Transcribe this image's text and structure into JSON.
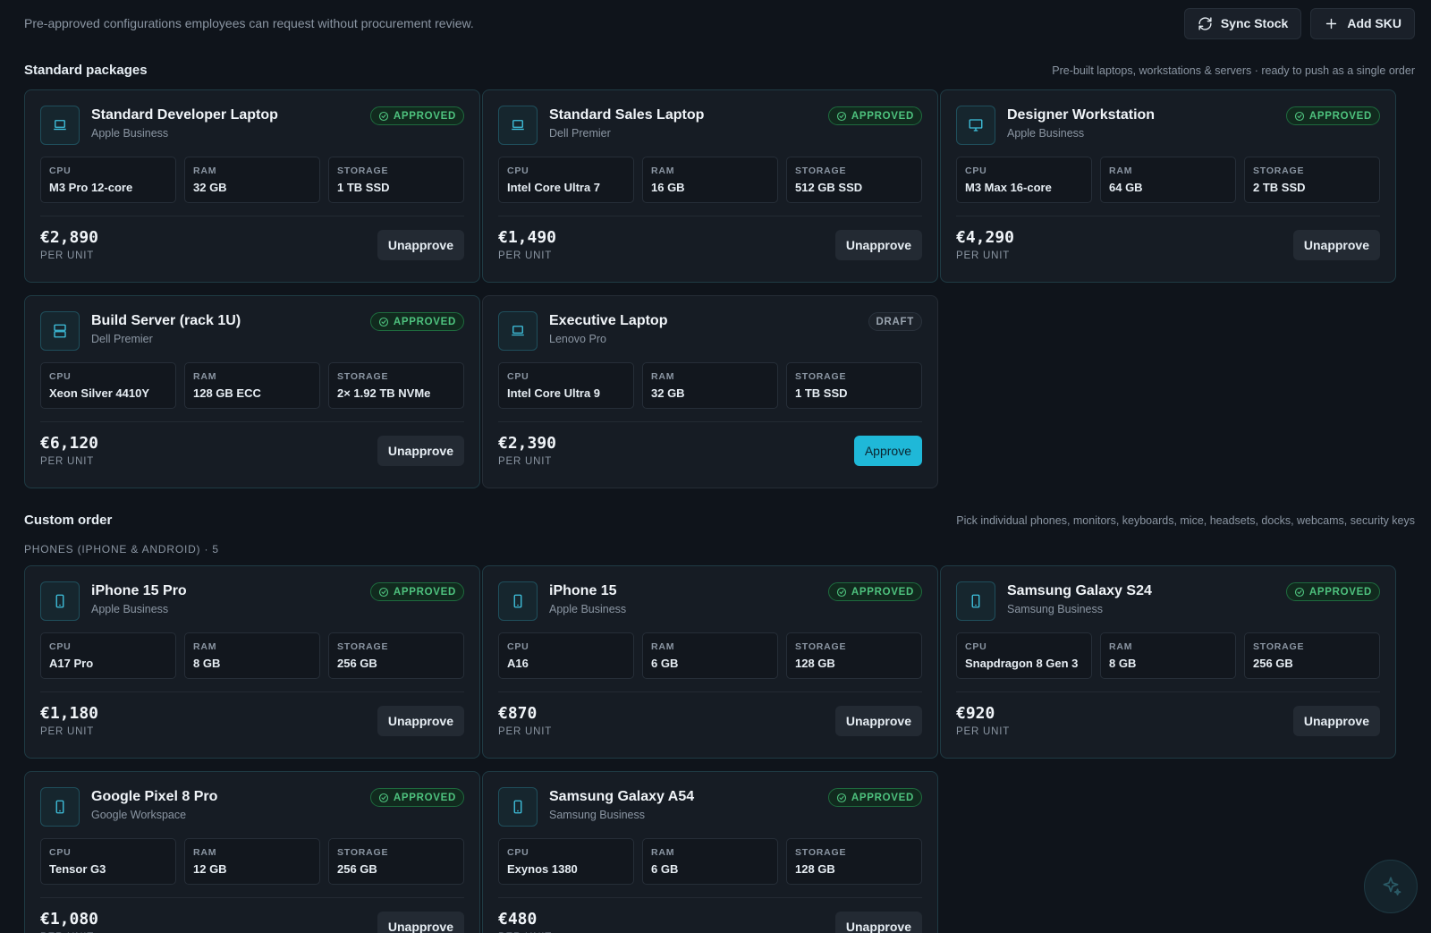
{
  "header": {
    "intro": "Pre-approved configurations employees can request without procurement review.",
    "sync_label": "Sync Stock",
    "add_label": "Add SKU"
  },
  "colors": {
    "accent": "#1fb8d8",
    "approved": "#4ec27e",
    "background": "#0f141b",
    "card": "#161c24"
  },
  "standard": {
    "title": "Standard packages",
    "subtitle": "Pre-built laptops, workstations & servers · ready to push as a single order",
    "cards": [
      {
        "icon": "laptop-icon",
        "title": "Standard Developer Laptop",
        "vendor": "Apple Business",
        "status": "APPROVED",
        "specs": [
          {
            "k": "CPU",
            "v": "M3 Pro 12-core"
          },
          {
            "k": "RAM",
            "v": "32 GB"
          },
          {
            "k": "STORAGE",
            "v": "1 TB SSD"
          }
        ],
        "price": "€2,890",
        "per_unit": "PER UNIT",
        "action": "Unapprove"
      },
      {
        "icon": "laptop-icon",
        "title": "Standard Sales Laptop",
        "vendor": "Dell Premier",
        "status": "APPROVED",
        "specs": [
          {
            "k": "CPU",
            "v": "Intel Core Ultra 7"
          },
          {
            "k": "RAM",
            "v": "16 GB"
          },
          {
            "k": "STORAGE",
            "v": "512 GB SSD"
          }
        ],
        "price": "€1,490",
        "per_unit": "PER UNIT",
        "action": "Unapprove"
      },
      {
        "icon": "monitor-icon",
        "title": "Designer Workstation",
        "vendor": "Apple Business",
        "status": "APPROVED",
        "specs": [
          {
            "k": "CPU",
            "v": "M3 Max 16-core"
          },
          {
            "k": "RAM",
            "v": "64 GB"
          },
          {
            "k": "STORAGE",
            "v": "2 TB SSD"
          }
        ],
        "price": "€4,290",
        "per_unit": "PER UNIT",
        "action": "Unapprove"
      },
      {
        "icon": "server-icon",
        "title": "Build Server (rack 1U)",
        "vendor": "Dell Premier",
        "status": "APPROVED",
        "specs": [
          {
            "k": "CPU",
            "v": "Xeon Silver 4410Y"
          },
          {
            "k": "RAM",
            "v": "128 GB ECC"
          },
          {
            "k": "STORAGE",
            "v": "2× 1.92 TB NVMe"
          }
        ],
        "price": "€6,120",
        "per_unit": "PER UNIT",
        "action": "Unapprove"
      },
      {
        "icon": "laptop-icon",
        "title": "Executive Laptop",
        "vendor": "Lenovo Pro",
        "status": "DRAFT",
        "specs": [
          {
            "k": "CPU",
            "v": "Intel Core Ultra 9"
          },
          {
            "k": "RAM",
            "v": "32 GB"
          },
          {
            "k": "STORAGE",
            "v": "1 TB SSD"
          }
        ],
        "price": "€2,390",
        "per_unit": "PER UNIT",
        "action": "Approve"
      }
    ]
  },
  "custom": {
    "title": "Custom order",
    "subtitle": "Pick individual phones, monitors, keyboards, mice, headsets, docks, webcams, security keys",
    "group_label": "PHONES (IPHONE & ANDROID) · 5",
    "cards": [
      {
        "icon": "phone-icon",
        "title": "iPhone 15 Pro",
        "vendor": "Apple Business",
        "status": "APPROVED",
        "specs": [
          {
            "k": "CPU",
            "v": "A17 Pro"
          },
          {
            "k": "RAM",
            "v": "8 GB"
          },
          {
            "k": "STORAGE",
            "v": "256 GB"
          }
        ],
        "price": "€1,180",
        "per_unit": "PER UNIT",
        "action": "Unapprove"
      },
      {
        "icon": "phone-icon",
        "title": "iPhone 15",
        "vendor": "Apple Business",
        "status": "APPROVED",
        "specs": [
          {
            "k": "CPU",
            "v": "A16"
          },
          {
            "k": "RAM",
            "v": "6 GB"
          },
          {
            "k": "STORAGE",
            "v": "128 GB"
          }
        ],
        "price": "€870",
        "per_unit": "PER UNIT",
        "action": "Unapprove"
      },
      {
        "icon": "phone-icon",
        "title": "Samsung Galaxy S24",
        "vendor": "Samsung Business",
        "status": "APPROVED",
        "specs": [
          {
            "k": "CPU",
            "v": "Snapdragon 8 Gen 3"
          },
          {
            "k": "RAM",
            "v": "8 GB"
          },
          {
            "k": "STORAGE",
            "v": "256 GB"
          }
        ],
        "price": "€920",
        "per_unit": "PER UNIT",
        "action": "Unapprove"
      },
      {
        "icon": "phone-icon",
        "title": "Google Pixel 8 Pro",
        "vendor": "Google Workspace",
        "status": "APPROVED",
        "specs": [
          {
            "k": "CPU",
            "v": "Tensor G3"
          },
          {
            "k": "RAM",
            "v": "12 GB"
          },
          {
            "k": "STORAGE",
            "v": "256 GB"
          }
        ],
        "price": "€1,080",
        "per_unit": "PER UNIT",
        "action": "Unapprove"
      },
      {
        "icon": "phone-icon",
        "title": "Samsung Galaxy A54",
        "vendor": "Samsung Business",
        "status": "APPROVED",
        "specs": [
          {
            "k": "CPU",
            "v": "Exynos 1380"
          },
          {
            "k": "RAM",
            "v": "6 GB"
          },
          {
            "k": "STORAGE",
            "v": "128 GB"
          }
        ],
        "price": "€480",
        "per_unit": "PER UNIT",
        "action": "Unapprove"
      }
    ]
  },
  "fab": {
    "icon": "sparkle-icon"
  }
}
